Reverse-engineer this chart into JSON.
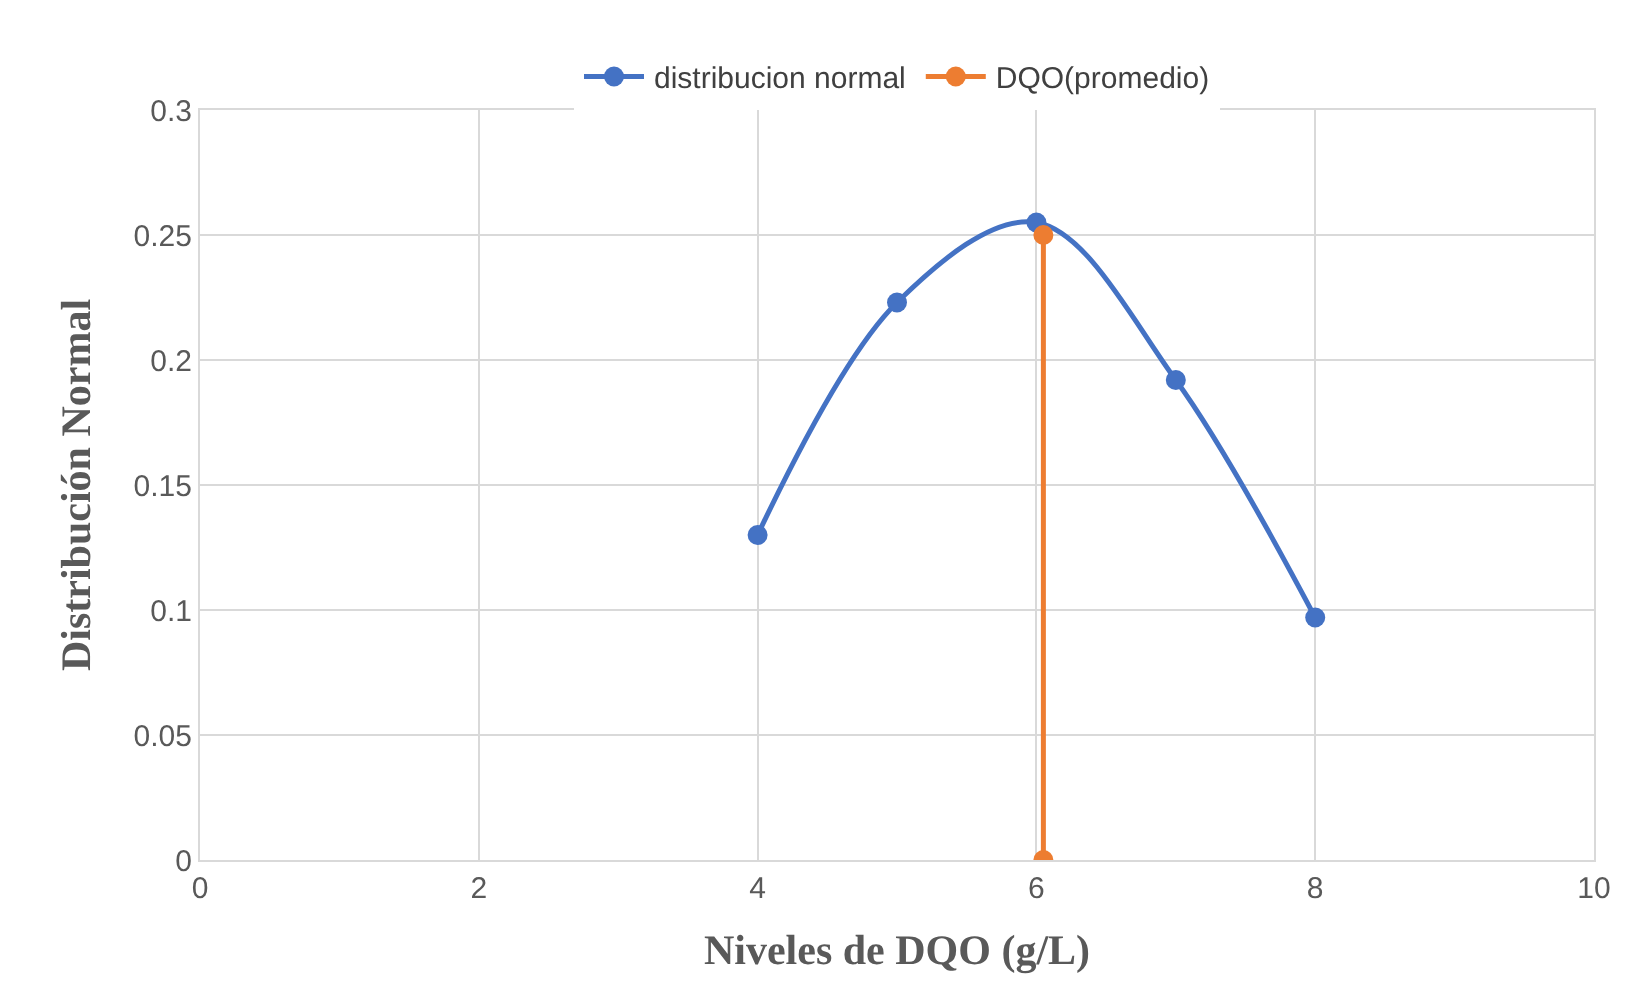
{
  "chart_data": {
    "type": "line",
    "xlabel": "Niveles de DQO (g/L)",
    "ylabel": "Distribución Normal",
    "xlim": [
      0,
      10
    ],
    "xticks": [
      0,
      2,
      4,
      6,
      8,
      10
    ],
    "ylim": [
      0,
      0.3
    ],
    "yticks": [
      0,
      0.05,
      0.1,
      0.15,
      0.2,
      0.25,
      0.3
    ],
    "grid": true,
    "legend": "top",
    "marker": "circle",
    "line_style": "solid",
    "series": [
      {
        "name": "distribucion normal",
        "color": "#4472c4",
        "x": [
          4,
          5,
          6,
          7,
          8
        ],
        "values": [
          0.13,
          0.223,
          0.255,
          0.192,
          0.097
        ]
      },
      {
        "name": "DQO(promedio)",
        "color": "#ed7d31",
        "x": [
          6.05,
          6.05
        ],
        "values": [
          0.25,
          0
        ]
      }
    ]
  }
}
